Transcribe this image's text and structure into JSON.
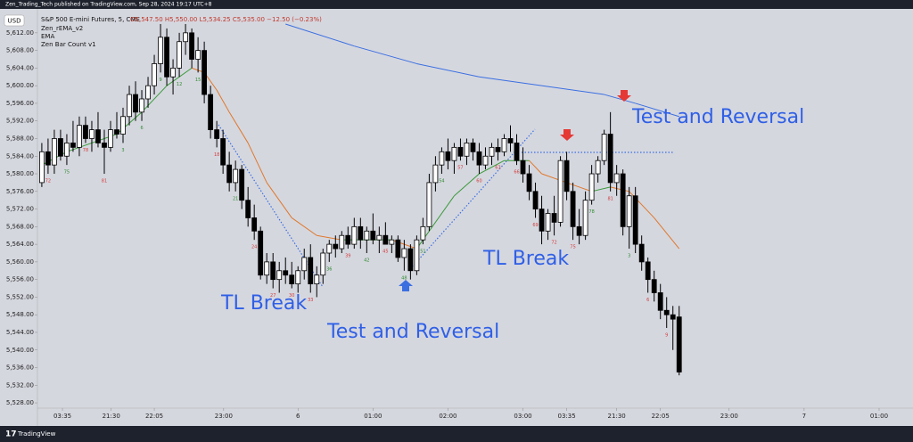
{
  "header": {
    "published": "Zen_Trading_Tech published on TradingView.com, Sep 28, 2024 19:17 UTC+8",
    "currency": "USD",
    "symbol": "S&P 500 E-mini Futures, 5, CME",
    "ohlc": "O5,547.50 H5,550.00 L5,534.25 C5,535.00 −12.50 (−0.23%)",
    "indicators": [
      "Zen_rEMA_v2",
      "EMA",
      "Zen Bar Count v1"
    ]
  },
  "footer": {
    "brand": "TradingView"
  },
  "annotations": [
    "TL Break",
    "Test and Reversal",
    "TL Break",
    "Test and Reversal"
  ],
  "chart_data": {
    "type": "candlestick",
    "xlim": [
      -0.7,
      136
    ],
    "xticks": [
      {
        "value": 3.3,
        "label": "03:35"
      },
      {
        "value": 11.1,
        "label": "21:30"
      },
      {
        "value": 18,
        "label": "22:05"
      },
      {
        "value": 29.1,
        "label": "23:00"
      },
      {
        "value": 41,
        "label": "6"
      },
      {
        "value": 53,
        "label": "01:00"
      },
      {
        "value": 65,
        "label": "02:00"
      },
      {
        "value": 77,
        "label": "03:00"
      },
      {
        "value": 84,
        "label": "03:35"
      },
      {
        "value": 92,
        "label": "21:30"
      },
      {
        "value": 99,
        "label": "22:05"
      },
      {
        "value": 110,
        "label": "23:00"
      },
      {
        "value": 122,
        "label": "7"
      },
      {
        "value": 134,
        "label": "01:00"
      }
    ],
    "ylim": [
      5526.8,
      5614.6
    ],
    "yticks": [
      {
        "value": 5528,
        "label": "5,528.00"
      },
      {
        "value": 5532,
        "label": "5,532.00"
      },
      {
        "value": 5536,
        "label": "5,536.00"
      },
      {
        "value": 5540,
        "label": "5,540.00"
      },
      {
        "value": 5544,
        "label": "5,544.00"
      },
      {
        "value": 5548,
        "label": "5,548.00"
      },
      {
        "value": 5552,
        "label": "5,552.00"
      },
      {
        "value": 5556,
        "label": "5,556.00"
      },
      {
        "value": 5560,
        "label": "5,560.00"
      },
      {
        "value": 5564,
        "label": "5,564.00"
      },
      {
        "value": 5568,
        "label": "5,568.00"
      },
      {
        "value": 5572,
        "label": "5,572.00"
      },
      {
        "value": 5576,
        "label": "5,576.00"
      },
      {
        "value": 5580,
        "label": "5,580.00"
      },
      {
        "value": 5584,
        "label": "5,584.00"
      },
      {
        "value": 5588,
        "label": "5,588.00"
      },
      {
        "value": 5592,
        "label": "5,592.00"
      },
      {
        "value": 5596,
        "label": "5,596.00"
      },
      {
        "value": 5600,
        "label": "5,600.00"
      },
      {
        "value": 5604,
        "label": "5,604.00"
      },
      {
        "value": 5608,
        "label": "5,608.00"
      },
      {
        "value": 5612,
        "label": "5,612.00"
      }
    ],
    "up_color": "#ffffff",
    "down_color": "#000000",
    "candles": [
      [
        5578,
        5587,
        5577,
        5585
      ],
      [
        5585,
        5588,
        5580,
        5582
      ],
      [
        5582,
        5590,
        5580,
        5588
      ],
      [
        5588,
        5590,
        5583,
        5584
      ],
      [
        5584,
        5589,
        5582,
        5587
      ],
      [
        5587,
        5592,
        5585,
        5586
      ],
      [
        5586,
        5593,
        5584,
        5591
      ],
      [
        5591,
        5593,
        5587,
        5588
      ],
      [
        5588,
        5592,
        5585,
        5590
      ],
      [
        5590,
        5594,
        5586,
        5587
      ],
      [
        5587,
        5590,
        5580,
        5586
      ],
      [
        5586,
        5592,
        5585,
        5590
      ],
      [
        5590,
        5594,
        5588,
        5589
      ],
      [
        5589,
        5595,
        5587,
        5593
      ],
      [
        5593,
        5600,
        5591,
        5598
      ],
      [
        5598,
        5601,
        5592,
        5594
      ],
      [
        5594,
        5599,
        5592,
        5597
      ],
      [
        5597,
        5602,
        5595,
        5600
      ],
      [
        5600,
        5607,
        5598,
        5605
      ],
      [
        5605,
        5614,
        5603,
        5611
      ],
      [
        5611,
        5613,
        5600,
        5602
      ],
      [
        5602,
        5606,
        5598,
        5604
      ],
      [
        5604,
        5612,
        5602,
        5610
      ],
      [
        5610,
        5614,
        5607,
        5612
      ],
      [
        5612,
        5613,
        5604,
        5606
      ],
      [
        5606,
        5611,
        5603,
        5608
      ],
      [
        5608,
        5610,
        5596,
        5598
      ],
      [
        5598,
        5600,
        5588,
        5590
      ],
      [
        5590,
        5592,
        5586,
        5588
      ],
      [
        5588,
        5590,
        5580,
        5582
      ],
      [
        5582,
        5585,
        5576,
        5578
      ],
      [
        5578,
        5583,
        5576,
        5581
      ],
      [
        5581,
        5582,
        5572,
        5574
      ],
      [
        5574,
        5577,
        5568,
        5570
      ],
      [
        5570,
        5573,
        5565,
        5567
      ],
      [
        5567,
        5568,
        5556,
        5557
      ],
      [
        5557,
        5562,
        5555,
        5560
      ],
      [
        5560,
        5562,
        5554,
        5556
      ],
      [
        5556,
        5560,
        5553,
        5558
      ],
      [
        5558,
        5561,
        5555,
        5557
      ],
      [
        5557,
        5560,
        5554,
        5555
      ],
      [
        5555,
        5559,
        5553,
        5558
      ],
      [
        5558,
        5563,
        5556,
        5561
      ],
      [
        5561,
        5564,
        5553,
        5555
      ],
      [
        5555,
        5559,
        5552,
        5557
      ],
      [
        5557,
        5563,
        5555,
        5562
      ],
      [
        5562,
        5565,
        5560,
        5564
      ],
      [
        5564,
        5566,
        5561,
        5563
      ],
      [
        5563,
        5567,
        5562,
        5566
      ],
      [
        5566,
        5568,
        5563,
        5564
      ],
      [
        5564,
        5570,
        5563,
        5568
      ],
      [
        5568,
        5570,
        5563,
        5565
      ],
      [
        5565,
        5568,
        5562,
        5567
      ],
      [
        5567,
        5571,
        5564,
        5565
      ],
      [
        5565,
        5568,
        5562,
        5566
      ],
      [
        5566,
        5569,
        5564,
        5564
      ],
      [
        5564,
        5566,
        5562,
        5565
      ],
      [
        5565,
        5566,
        5560,
        5561
      ],
      [
        5561,
        5565,
        5558,
        5563
      ],
      [
        5563,
        5564,
        5556,
        5558
      ],
      [
        5558,
        5566,
        5557,
        5565
      ],
      [
        5565,
        5570,
        5564,
        5568
      ],
      [
        5568,
        5580,
        5567,
        5578
      ],
      [
        5578,
        5584,
        5576,
        5582
      ],
      [
        5582,
        5586,
        5580,
        5585
      ],
      [
        5585,
        5588,
        5581,
        5583
      ],
      [
        5583,
        5587,
        5580,
        5586
      ],
      [
        5586,
        5588,
        5583,
        5584
      ],
      [
        5584,
        5588,
        5582,
        5587
      ],
      [
        5587,
        5588,
        5583,
        5585
      ],
      [
        5585,
        5587,
        5580,
        5582
      ],
      [
        5582,
        5586,
        5581,
        5584
      ],
      [
        5584,
        5587,
        5582,
        5586
      ],
      [
        5586,
        5588,
        5583,
        5585
      ],
      [
        5585,
        5589,
        5584,
        5588
      ],
      [
        5588,
        5591,
        5585,
        5587
      ],
      [
        5587,
        5589,
        5582,
        5583
      ],
      [
        5583,
        5586,
        5578,
        5580
      ],
      [
        5580,
        5582,
        5574,
        5576
      ],
      [
        5576,
        5578,
        5570,
        5572
      ],
      [
        5572,
        5575,
        5564,
        5567
      ],
      [
        5567,
        5572,
        5565,
        5571
      ],
      [
        5571,
        5575,
        5566,
        5569
      ],
      [
        5569,
        5584,
        5568,
        5583
      ],
      [
        5583,
        5585,
        5574,
        5576
      ],
      [
        5576,
        5578,
        5565,
        5568
      ],
      [
        5568,
        5572,
        5564,
        5566
      ],
      [
        5566,
        5576,
        5565,
        5574
      ],
      [
        5574,
        5582,
        5573,
        5580
      ],
      [
        5580,
        5584,
        5578,
        5583
      ],
      [
        5583,
        5590,
        5582,
        5589
      ],
      [
        5589,
        5594,
        5576,
        5578
      ],
      [
        5578,
        5582,
        5575,
        5580
      ],
      [
        5580,
        5581,
        5566,
        5568
      ],
      [
        5568,
        5577,
        5563,
        5575
      ],
      [
        5575,
        5577,
        5562,
        5564
      ],
      [
        5564,
        5566,
        5558,
        5560
      ],
      [
        5560,
        5561,
        5553,
        5556
      ],
      [
        5556,
        5558,
        5551,
        5553
      ],
      [
        5553,
        5555,
        5547,
        5549
      ],
      [
        5549,
        5552,
        5545,
        5548
      ],
      [
        5548,
        5550,
        5540,
        5547
      ],
      [
        5547.5,
        5550,
        5534.25,
        5535
      ]
    ],
    "ema_fast": {
      "x": [
        0,
        4,
        8,
        12,
        16,
        20,
        24,
        26,
        28,
        30,
        33,
        36,
        40,
        44,
        48,
        52,
        56,
        58,
        60,
        62,
        66,
        70,
        74,
        78,
        80,
        84,
        88,
        91,
        94,
        98,
        102
      ],
      "values": [
        5582,
        5585,
        5587,
        5589,
        5594,
        5600,
        5604,
        5603,
        5599,
        5594,
        5587,
        5578,
        5570,
        5566,
        5565,
        5565,
        5565,
        5564,
        5563,
        5567,
        5575,
        5580,
        5583,
        5583,
        5580,
        5578,
        5576,
        5577,
        5576,
        5570,
        5563
      ],
      "up_color": "#3a9a3a",
      "down_color": "#e0782a"
    },
    "ema_slow": {
      "x": [
        39,
        50,
        60,
        70,
        80,
        90,
        95,
        102
      ],
      "values": [
        5614,
        5609,
        5605,
        5602,
        5600,
        5598,
        5596,
        5593
      ],
      "color": "#3b6fe0"
    },
    "bar_counts": {
      "labels": [
        "72",
        "75",
        "78",
        "81",
        "3",
        "6",
        "9",
        "12",
        "15",
        "18",
        "21",
        "24",
        "27",
        "30",
        "33",
        "36",
        "39",
        "42",
        "45",
        "48",
        "51",
        "54",
        "57",
        "60",
        "63",
        "66",
        "69",
        "72",
        "75",
        "78",
        "81",
        "3",
        "6",
        "9"
      ],
      "index": [
        1,
        4,
        7,
        10,
        13,
        16,
        19,
        22,
        25,
        28,
        31,
        34,
        37,
        40,
        43,
        46,
        49,
        52,
        55,
        58,
        61,
        64,
        67,
        70,
        73,
        76,
        79,
        82,
        85,
        88,
        91,
        94,
        97,
        100
      ]
    }
  }
}
